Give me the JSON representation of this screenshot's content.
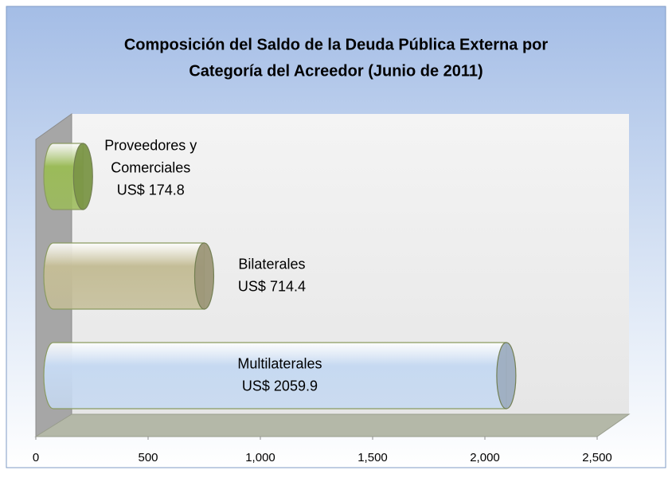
{
  "chart_data": {
    "type": "bar",
    "orientation": "horizontal",
    "title": [
      "Composición del Saldo de la Deuda Pública Externa por",
      "Categoría del Acreedor  (Junio de 2011)"
    ],
    "categories": [
      "Proveedores y Comerciales",
      "Bilaterales",
      "Multilaterales"
    ],
    "values": [
      174.8,
      714.4,
      2059.9
    ],
    "value_labels": [
      "US$ 174.8",
      "US$ 714.4",
      "US$ 2059.9"
    ],
    "colors": [
      "#9bbb59",
      "#c4bd97",
      "#c6d9f1"
    ],
    "xlim": [
      0,
      2500
    ],
    "xticks": [
      0,
      500,
      {
        "value": 1000,
        "label": "1,000"
      },
      {
        "value": 1500,
        "label": "1,500"
      },
      {
        "value": 2000,
        "label": "2,000"
      },
      {
        "value": 2500,
        "label": "2,500"
      }
    ]
  }
}
